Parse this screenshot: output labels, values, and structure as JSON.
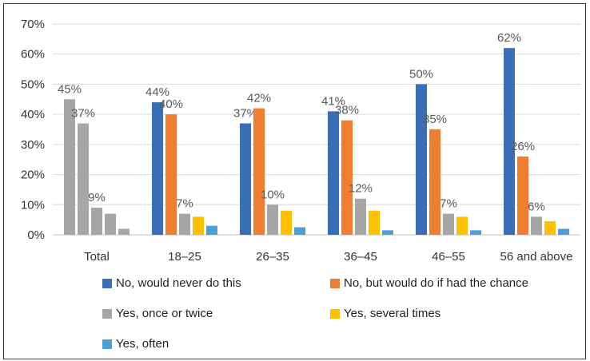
{
  "chart_data": {
    "type": "bar",
    "categories": [
      "Total",
      "18–25",
      "26–35",
      "36–45",
      "46–55",
      "56 and above"
    ],
    "ylim": [
      0,
      70
    ],
    "yticks": [
      "0%",
      "10%",
      "20%",
      "30%",
      "40%",
      "50%",
      "60%",
      "70%"
    ],
    "grid": true,
    "legend_position": "bottom",
    "series": [
      {
        "name": "No, would never do this",
        "color": "#3a6fb8",
        "values": [
          null,
          44,
          37,
          41,
          50,
          62
        ],
        "labels": [
          "",
          "44%",
          "37%",
          "41%",
          "50%",
          "62%"
        ]
      },
      {
        "name": "No, but would do if had the chance",
        "color": "#ef7d32",
        "values": [
          null,
          40,
          42,
          38,
          35,
          26
        ],
        "labels": [
          "",
          "40%",
          "42%",
          "38%",
          "35%",
          "26%"
        ]
      },
      {
        "name": "Yes, once or twice",
        "color": "#a6a6a6",
        "values": [
          45,
          7,
          10,
          12,
          7,
          6
        ],
        "labels": [
          "45%",
          "7%",
          "10%",
          "12%",
          "7%",
          "6%"
        ]
      },
      {
        "name": "Yes, several times",
        "color": "#a6a6a6",
        "values": [
          37,
          6,
          8,
          8,
          6,
          4.5
        ],
        "labels": [
          "37%",
          "",
          "",
          "",
          "",
          ""
        ]
      },
      {
        "name": "Yes, often",
        "color": "#a6a6a6",
        "values": [
          9,
          3,
          2.5,
          1.5,
          1.5,
          2
        ],
        "labels": [
          "9%",
          "",
          "",
          "",
          "",
          ""
        ]
      },
      {
        "name": "",
        "color": "#a6a6a6",
        "values": [
          7,
          null,
          null,
          null,
          null,
          null
        ],
        "labels": [
          "",
          "",
          "",
          "",
          "",
          ""
        ]
      },
      {
        "name": "",
        "color": "#a6a6a6",
        "values": [
          2,
          null,
          null,
          null,
          null,
          null
        ],
        "labels": [
          "",
          "",
          "",
          "",
          "",
          ""
        ]
      }
    ],
    "bar_colors": {
      "Total": [
        "#a6a6a6",
        "#a6a6a6",
        "#a6a6a6",
        "#a6a6a6",
        "#a6a6a6"
      ],
      "groups": [
        "#3a6fb8",
        "#ef7d32",
        "#a6a6a6",
        "#ffc000",
        "#4f9fd7"
      ]
    },
    "legend": [
      {
        "name": "No, would never do this",
        "color": "#3a6fb8"
      },
      {
        "name": "No, but would do if had the chance",
        "color": "#ef7d32"
      },
      {
        "name": "Yes, once or twice",
        "color": "#a6a6a6"
      },
      {
        "name": "Yes, several times",
        "color": "#ffc000"
      },
      {
        "name": "Yes, often",
        "color": "#4f9fd7"
      }
    ]
  }
}
